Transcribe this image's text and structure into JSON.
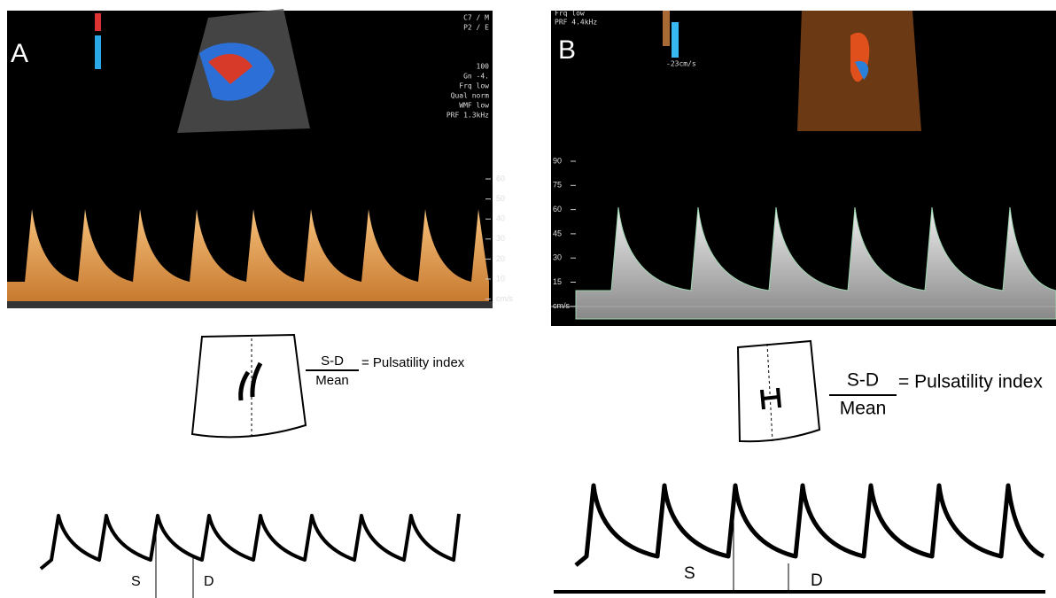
{
  "panels": [
    {
      "label": "A",
      "overlay_text": [
        "C7 / M",
        "P2 / E",
        "100",
        "Gn -4.",
        "Frq low",
        "Qual norm",
        "WMF low",
        "PRF 1.3kHz"
      ],
      "axis_ticks": [
        "60",
        "50",
        "40",
        "30",
        "20",
        "10",
        "cm/s"
      ],
      "formula": {
        "numerator": "S-D",
        "denominator": "Mean",
        "result": "= Pulsatility index"
      },
      "wave_labels": {
        "s": "S",
        "d": "D"
      }
    },
    {
      "label": "B",
      "overlay_text": [
        "Frq low",
        "PRF 4.4kHz",
        "-23cm/s"
      ],
      "axis_ticks": [
        "90",
        "75",
        "60",
        "45",
        "30",
        "15",
        "cm/s"
      ],
      "formula": {
        "numerator": "S-D",
        "denominator": "Mean",
        "result": "= Pulsatility index"
      },
      "wave_labels": {
        "s": "S",
        "d": "D"
      }
    }
  ]
}
